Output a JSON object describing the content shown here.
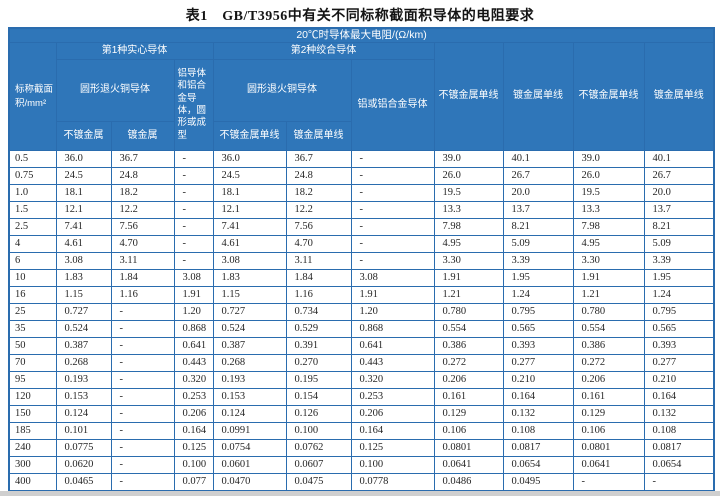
{
  "title": "表1　GB/T3956中有关不同标称截面积导体的电阻要求",
  "header": {
    "span_title": "20℃时导体最大电阻/(Ω/km)",
    "area_label": "标称截面积/mm²",
    "type1": "第1种实心导体",
    "type2": "第2种绞合导体",
    "copper1": "圆形退火铜导体",
    "copper2": "圆形退火铜导体",
    "alu_solid": "铝导体和铝合金导体，圆形或成型",
    "alu_stranded": "铝或铝合金导体",
    "unplated": "不镀金属",
    "plated": "镀金属",
    "unplated_wire": "不镀金属单线",
    "plated_wire": "镀金属单线",
    "right_cols": [
      "不镀金属单线",
      "镀金属单线",
      "不镀金属单线",
      "镀金属单线"
    ]
  },
  "colors": {
    "header_bg": "#2f76b9",
    "grid_border": "#2a6cae",
    "cell_bg": "#ffffff",
    "data_text": "#262626",
    "title_text": "#141414"
  },
  "rows": [
    [
      "0.5",
      "36.0",
      "36.7",
      "-",
      "36.0",
      "36.7",
      "-",
      "39.0",
      "40.1",
      "39.0",
      "40.1"
    ],
    [
      "0.75",
      "24.5",
      "24.8",
      "-",
      "24.5",
      "24.8",
      "-",
      "26.0",
      "26.7",
      "26.0",
      "26.7"
    ],
    [
      "1.0",
      "18.1",
      "18.2",
      "-",
      "18.1",
      "18.2",
      "-",
      "19.5",
      "20.0",
      "19.5",
      "20.0"
    ],
    [
      "1.5",
      "12.1",
      "12.2",
      "-",
      "12.1",
      "12.2",
      "-",
      "13.3",
      "13.7",
      "13.3",
      "13.7"
    ],
    [
      "2.5",
      "7.41",
      "7.56",
      "-",
      "7.41",
      "7.56",
      "-",
      "7.98",
      "8.21",
      "7.98",
      "8.21"
    ],
    [
      "4",
      "4.61",
      "4.70",
      "-",
      "4.61",
      "4.70",
      "-",
      "4.95",
      "5.09",
      "4.95",
      "5.09"
    ],
    [
      "6",
      "3.08",
      "3.11",
      "-",
      "3.08",
      "3.11",
      "-",
      "3.30",
      "3.39",
      "3.30",
      "3.39"
    ],
    [
      "10",
      "1.83",
      "1.84",
      "3.08",
      "1.83",
      "1.84",
      "3.08",
      "1.91",
      "1.95",
      "1.91",
      "1.95"
    ],
    [
      "16",
      "1.15",
      "1.16",
      "1.91",
      "1.15",
      "1.16",
      "1.91",
      "1.21",
      "1.24",
      "1.21",
      "1.24"
    ],
    [
      "25",
      "0.727",
      "-",
      "1.20",
      "0.727",
      "0.734",
      "1.20",
      "0.780",
      "0.795",
      "0.780",
      "0.795"
    ],
    [
      "35",
      "0.524",
      "-",
      "0.868",
      "0.524",
      "0.529",
      "0.868",
      "0.554",
      "0.565",
      "0.554",
      "0.565"
    ],
    [
      "50",
      "0.387",
      "-",
      "0.641",
      "0.387",
      "0.391",
      "0.641",
      "0.386",
      "0.393",
      "0.386",
      "0.393"
    ],
    [
      "70",
      "0.268",
      "-",
      "0.443",
      "0.268",
      "0.270",
      "0.443",
      "0.272",
      "0.277",
      "0.272",
      "0.277"
    ],
    [
      "95",
      "0.193",
      "-",
      "0.320",
      "0.193",
      "0.195",
      "0.320",
      "0.206",
      "0.210",
      "0.206",
      "0.210"
    ],
    [
      "120",
      "0.153",
      "-",
      "0.253",
      "0.153",
      "0.154",
      "0.253",
      "0.161",
      "0.164",
      "0.161",
      "0.164"
    ],
    [
      "150",
      "0.124",
      "-",
      "0.206",
      "0.124",
      "0.126",
      "0.206",
      "0.129",
      "0.132",
      "0.129",
      "0.132"
    ],
    [
      "185",
      "0.101",
      "-",
      "0.164",
      "0.0991",
      "0.100",
      "0.164",
      "0.106",
      "0.108",
      "0.106",
      "0.108"
    ],
    [
      "240",
      "0.0775",
      "-",
      "0.125",
      "0.0754",
      "0.0762",
      "0.125",
      "0.0801",
      "0.0817",
      "0.0801",
      "0.0817"
    ],
    [
      "300",
      "0.0620",
      "-",
      "0.100",
      "0.0601",
      "0.0607",
      "0.100",
      "0.0641",
      "0.0654",
      "0.0641",
      "0.0654"
    ],
    [
      "400",
      "0.0465",
      "-",
      "0.077",
      "0.0470",
      "0.0475",
      "0.0778",
      "0.0486",
      "0.0495",
      "-",
      "-"
    ]
  ]
}
